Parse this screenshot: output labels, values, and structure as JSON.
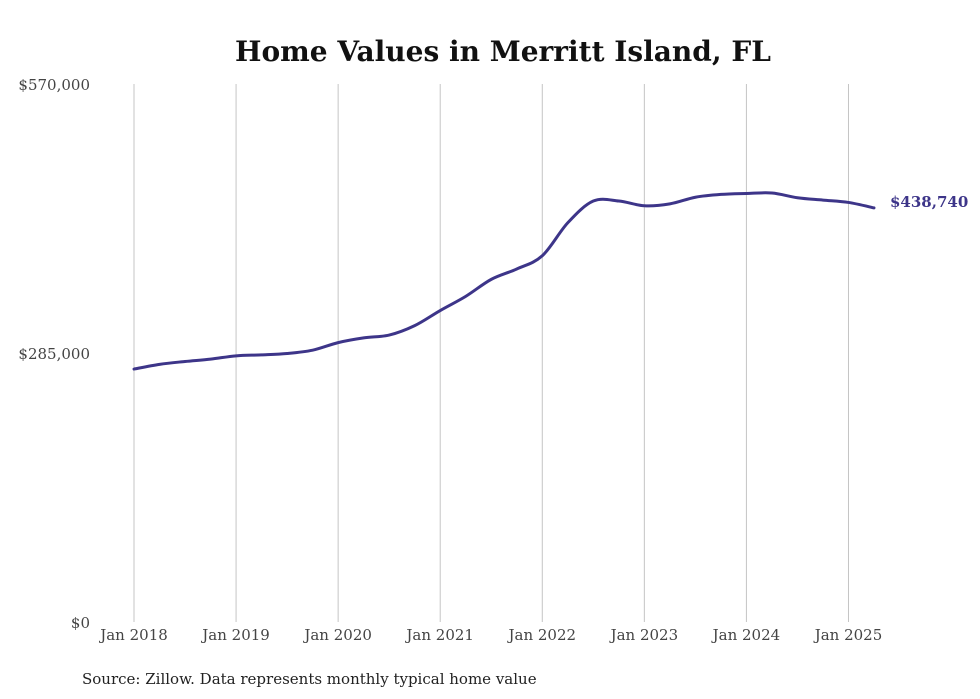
{
  "chart_data": {
    "type": "line",
    "title": "Home Values in Merritt Island, FL",
    "xlabel": "",
    "ylabel": "",
    "ylim": [
      0,
      570000
    ],
    "xlim": [
      "2018-01",
      "2025-04"
    ],
    "grid": "vertical",
    "yticks": [
      {
        "value": 0,
        "label": "$0"
      },
      {
        "value": 285000,
        "label": "$285,000"
      },
      {
        "value": 570000,
        "label": "$570,000"
      }
    ],
    "xticks": [
      {
        "value": "2018-01",
        "label": "Jan 2018"
      },
      {
        "value": "2019-01",
        "label": "Jan 2019"
      },
      {
        "value": "2020-01",
        "label": "Jan 2020"
      },
      {
        "value": "2021-01",
        "label": "Jan 2021"
      },
      {
        "value": "2022-01",
        "label": "Jan 2022"
      },
      {
        "value": "2023-01",
        "label": "Jan 2023"
      },
      {
        "value": "2024-01",
        "label": "Jan 2024"
      },
      {
        "value": "2025-01",
        "label": "Jan 2025"
      }
    ],
    "series": [
      {
        "color": "#3d3589",
        "end_label": "$438,740",
        "points": [
          {
            "x": "2018-01",
            "y": 268000
          },
          {
            "x": "2018-04",
            "y": 273000
          },
          {
            "x": "2018-07",
            "y": 276000
          },
          {
            "x": "2018-10",
            "y": 278500
          },
          {
            "x": "2019-01",
            "y": 282000
          },
          {
            "x": "2019-04",
            "y": 283000
          },
          {
            "x": "2019-07",
            "y": 284500
          },
          {
            "x": "2019-10",
            "y": 288000
          },
          {
            "x": "2020-01",
            "y": 296000
          },
          {
            "x": "2020-04",
            "y": 301000
          },
          {
            "x": "2020-07",
            "y": 304000
          },
          {
            "x": "2020-10",
            "y": 314000
          },
          {
            "x": "2021-01",
            "y": 330000
          },
          {
            "x": "2021-04",
            "y": 345000
          },
          {
            "x": "2021-07",
            "y": 363000
          },
          {
            "x": "2021-10",
            "y": 374000
          },
          {
            "x": "2022-01",
            "y": 388000
          },
          {
            "x": "2022-04",
            "y": 423000
          },
          {
            "x": "2022-07",
            "y": 446000
          },
          {
            "x": "2022-10",
            "y": 446000
          },
          {
            "x": "2023-01",
            "y": 441000
          },
          {
            "x": "2023-04",
            "y": 443000
          },
          {
            "x": "2023-07",
            "y": 450000
          },
          {
            "x": "2023-10",
            "y": 453000
          },
          {
            "x": "2024-01",
            "y": 454000
          },
          {
            "x": "2024-04",
            "y": 454500
          },
          {
            "x": "2024-07",
            "y": 449500
          },
          {
            "x": "2024-10",
            "y": 447000
          },
          {
            "x": "2025-01",
            "y": 444500
          },
          {
            "x": "2025-04",
            "y": 438740
          }
        ]
      }
    ],
    "source": "Source: Zillow. Data represents monthly typical home value"
  }
}
